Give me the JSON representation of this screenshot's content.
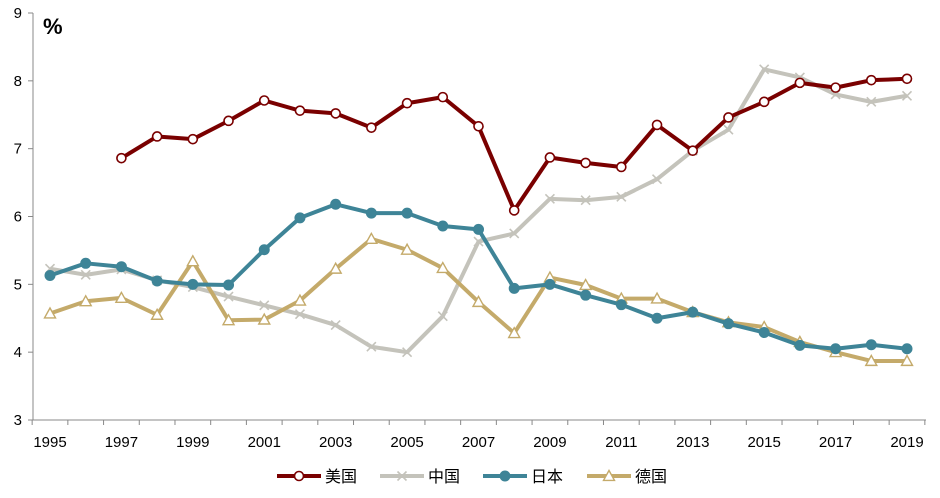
{
  "chart_data": {
    "type": "line",
    "title": "",
    "unit_label": "%",
    "xlabel": "",
    "ylabel": "",
    "ylim": [
      3,
      9
    ],
    "y_ticks": [
      3,
      4,
      5,
      6,
      7,
      8,
      9
    ],
    "x_range": [
      1995,
      2019
    ],
    "x_tick_labels": [
      "1995",
      "1997",
      "1999",
      "2001",
      "2003",
      "2005",
      "2007",
      "2009",
      "2011",
      "2013",
      "2015",
      "2017",
      "2019"
    ],
    "x": [
      1995,
      1996,
      1997,
      1998,
      1999,
      2000,
      2001,
      2002,
      2003,
      2004,
      2005,
      2006,
      2007,
      2008,
      2009,
      2010,
      2011,
      2012,
      2013,
      2014,
      2015,
      2016,
      2017,
      2018,
      2019
    ],
    "grid": false,
    "legend_position": "bottom",
    "series": [
      {
        "name": "美国",
        "color": "#7a0000",
        "marker": "open-circle",
        "values": [
          null,
          null,
          6.86,
          7.18,
          7.14,
          7.41,
          7.71,
          7.56,
          7.52,
          7.31,
          7.67,
          7.76,
          7.33,
          6.09,
          6.87,
          6.79,
          6.73,
          7.35,
          6.97,
          7.46,
          7.69,
          7.97,
          7.9,
          8.01,
          8.03
        ]
      },
      {
        "name": "中国",
        "color": "#c4c3bb",
        "marker": "x",
        "values": [
          5.23,
          5.14,
          5.22,
          5.06,
          4.96,
          4.82,
          4.69,
          4.56,
          4.4,
          4.08,
          4.0,
          4.53,
          5.63,
          5.75,
          6.26,
          6.24,
          6.29,
          6.55,
          6.97,
          7.28,
          8.17,
          8.05,
          7.8,
          7.69,
          7.78
        ]
      },
      {
        "name": "日本",
        "color": "#3e8497",
        "marker": "filled-circle",
        "values": [
          5.13,
          5.31,
          5.26,
          5.05,
          5.0,
          4.99,
          5.51,
          5.98,
          6.18,
          6.05,
          6.05,
          5.86,
          5.81,
          4.94,
          5.0,
          4.84,
          4.7,
          4.5,
          4.59,
          4.42,
          4.29,
          4.1,
          4.05,
          4.11,
          4.05
        ]
      },
      {
        "name": "德国",
        "color": "#c4aa6a",
        "marker": "open-triangle",
        "values": [
          4.57,
          4.75,
          4.8,
          4.55,
          5.34,
          4.47,
          4.48,
          4.76,
          5.23,
          5.67,
          5.51,
          5.24,
          4.74,
          4.28,
          5.1,
          4.99,
          4.79,
          4.79,
          4.59,
          4.44,
          4.37,
          4.15,
          4.0,
          3.87,
          3.87
        ]
      }
    ]
  }
}
